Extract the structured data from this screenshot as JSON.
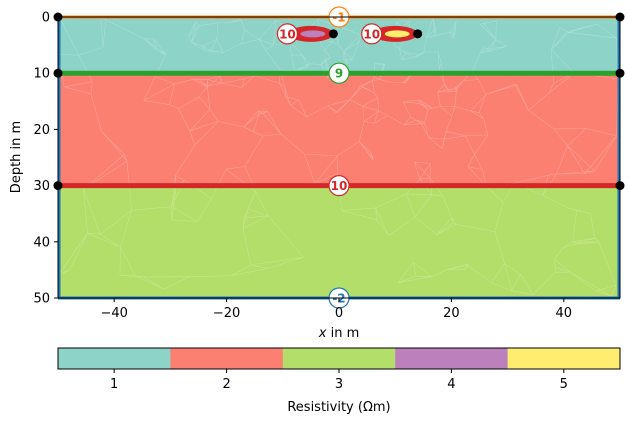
{
  "chart_data": {
    "type": "mesh",
    "xlabel_var": "x",
    "xlabel_unit": " in m",
    "ylabel": "Depth in m",
    "xlim": [
      -50,
      50
    ],
    "ylim": [
      0,
      50
    ],
    "x_ticks": [
      "−40",
      "−20",
      "0",
      "20",
      "40"
    ],
    "x_tick_values": [
      -40,
      -20,
      0,
      20,
      40
    ],
    "y_ticks": [
      "0",
      "10",
      "20",
      "30",
      "40",
      "50"
    ],
    "y_tick_values": [
      0,
      10,
      20,
      30,
      40,
      50
    ],
    "regions": [
      {
        "marker": 1,
        "depth_top": 0,
        "depth_bottom": 10,
        "color": "#8dd3c7"
      },
      {
        "marker": 2,
        "depth_top": 10,
        "depth_bottom": 30,
        "color": "#fb8072"
      },
      {
        "marker": 3,
        "depth_top": 30,
        "depth_bottom": 50,
        "color": "#b3de69"
      }
    ],
    "inclusions": [
      {
        "marker": 4,
        "x_from": -9,
        "x_to": -1,
        "depth": 3.0,
        "color": "#bc80bd"
      },
      {
        "marker": 5,
        "x_from": 6,
        "x_to": 14,
        "depth": 3.0,
        "color": "#ffed6f"
      }
    ],
    "boundaries": [
      {
        "id": "top",
        "label": "-1",
        "depth": 0,
        "color": "#ff7f0e"
      },
      {
        "id": "layer1",
        "label": "9",
        "depth": 10,
        "color": "#2ca02c"
      },
      {
        "id": "layer2",
        "label": "10",
        "depth": 30,
        "color": "#d62728"
      },
      {
        "id": "bottom",
        "label": "-2",
        "depth": 50,
        "color": "#1f77b4"
      }
    ],
    "inclusion_labels": [
      {
        "label": "10",
        "x": -9,
        "depth": 3.0,
        "color": "#d62728"
      },
      {
        "label": "10",
        "x": 6,
        "depth": 3.0,
        "color": "#d62728"
      }
    ],
    "nodes": [
      [
        -50,
        0
      ],
      [
        -50,
        10
      ],
      [
        -50,
        30
      ],
      [
        50,
        0
      ],
      [
        50,
        10
      ],
      [
        50,
        30
      ],
      [
        -1,
        3.0
      ],
      [
        14,
        3.0
      ]
    ]
  },
  "colorbar": {
    "label": "Resistivity (Ωm)",
    "ticks": [
      "1",
      "2",
      "3",
      "4",
      "5"
    ],
    "colors": [
      "#8dd3c7",
      "#fb8072",
      "#b3de69",
      "#bc80bd",
      "#ffed6f"
    ]
  }
}
